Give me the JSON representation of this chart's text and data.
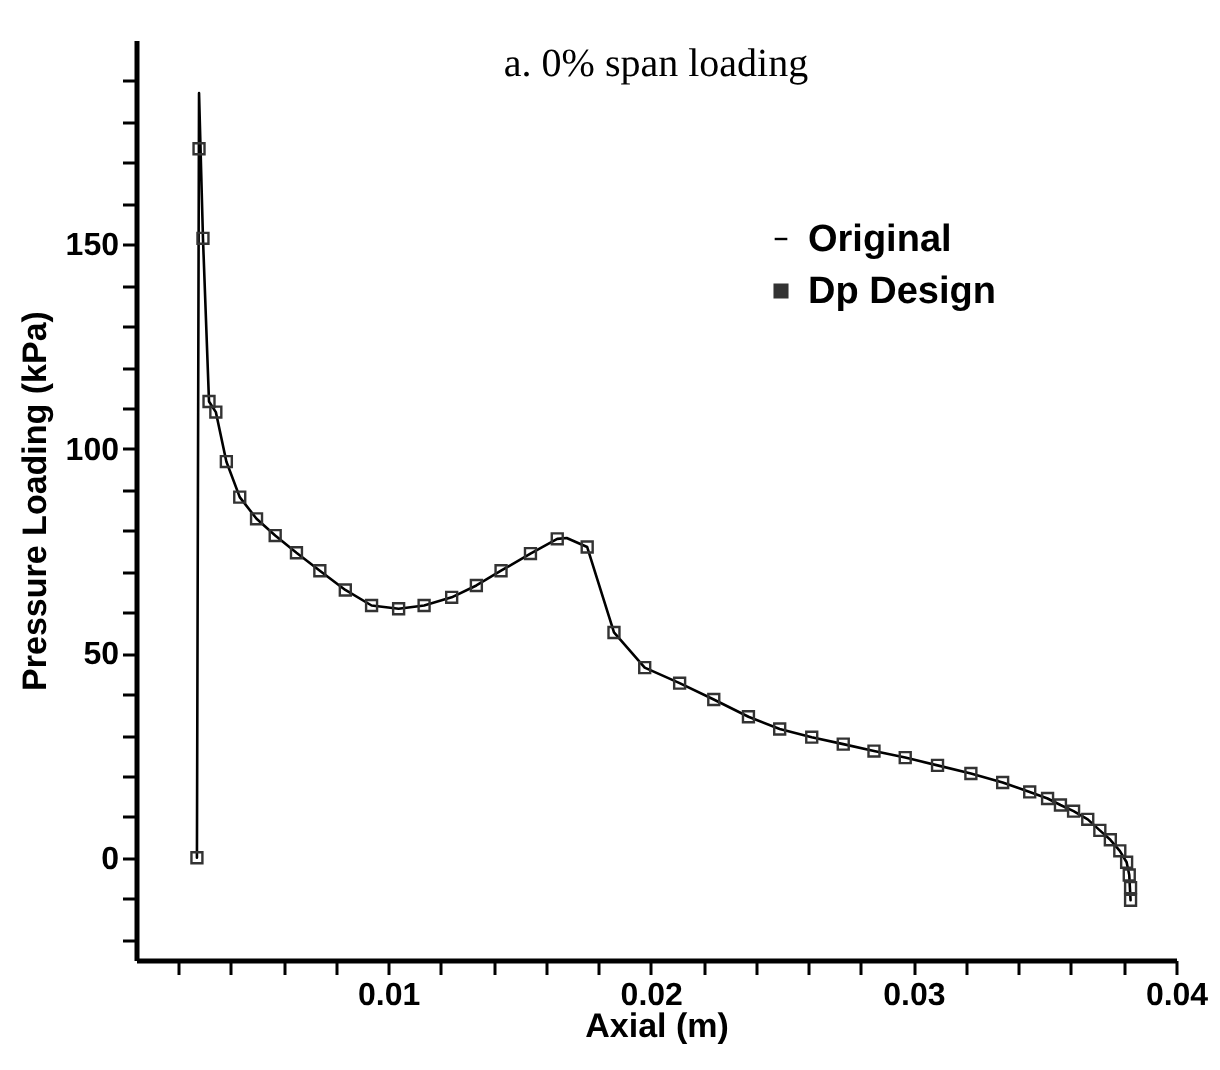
{
  "chart_data": {
    "type": "line",
    "title": "a. 0% span loading",
    "xlabel": "Axial (m)",
    "ylabel": "Pressure Loading (kPa)",
    "xlim": [
      0.0004,
      0.04
    ],
    "ylim": [
      -25,
      200
    ],
    "xticks": [
      {
        "value": 0.002,
        "label": null
      },
      {
        "value": 0.004,
        "label": null
      },
      {
        "value": 0.006,
        "label": null
      },
      {
        "value": 0.008,
        "label": null
      },
      0.01,
      {
        "value": 0.012,
        "label": null
      },
      {
        "value": 0.014,
        "label": null
      },
      {
        "value": 0.016,
        "label": null
      },
      {
        "value": 0.018,
        "label": null
      },
      0.02,
      {
        "value": 0.022,
        "label": null
      },
      {
        "value": 0.024,
        "label": null
      },
      {
        "value": 0.026,
        "label": null
      },
      {
        "value": 0.028,
        "label": null
      },
      0.03,
      {
        "value": 0.032,
        "label": null
      },
      {
        "value": 0.034,
        "label": null
      },
      {
        "value": 0.036,
        "label": null
      },
      {
        "value": 0.038,
        "label": null
      },
      0.04
    ],
    "yticks": [
      {
        "value": -20,
        "label": null
      },
      {
        "value": -10,
        "label": null
      },
      0,
      {
        "value": 10,
        "label": null
      },
      {
        "value": 20,
        "label": null
      },
      {
        "value": 30,
        "label": null
      },
      {
        "value": 40,
        "label": null
      },
      50,
      {
        "value": 60,
        "label": null
      },
      {
        "value": 70,
        "label": null
      },
      {
        "value": 80,
        "label": null
      },
      {
        "value": 90,
        "label": null
      },
      100,
      {
        "value": 110,
        "label": null
      },
      {
        "value": 120,
        "label": null
      },
      {
        "value": 130,
        "label": null
      },
      {
        "value": 140,
        "label": null
      },
      150,
      {
        "value": 160,
        "label": null
      },
      {
        "value": 170,
        "label": null
      },
      {
        "value": 180,
        "label": null
      },
      {
        "value": 190,
        "label": null
      }
    ],
    "grid": false,
    "legend": "top right",
    "series": [
      {
        "name": "Original",
        "type": "line",
        "color": "#000000",
        "marker": "none",
        "line_style": "solid",
        "x": [
          0.00272,
          0.0028,
          0.00295,
          0.00318,
          0.00344,
          0.00384,
          0.00435,
          0.00499,
          0.0057,
          0.00651,
          0.0074,
          0.00837,
          0.00937,
          0.0104,
          0.01137,
          0.01242,
          0.01336,
          0.0143,
          0.01542,
          0.01644,
          0.0168,
          0.01758,
          0.0186,
          0.01977,
          0.0211,
          0.0224,
          0.02372,
          0.02491,
          0.02613,
          0.02733,
          0.0285,
          0.02969,
          0.03092,
          0.03219,
          0.0334,
          0.03443,
          0.03511,
          0.0356,
          0.0361,
          0.03664,
          0.0371,
          0.0375,
          0.03786,
          0.03812,
          0.03822,
          0.03827
        ],
        "values": [
          0,
          187,
          151.5,
          111.6,
          109,
          96.9,
          88.2,
          82.9,
          78.8,
          74.6,
          70.2,
          65.5,
          61.7,
          60.9,
          61.7,
          63.7,
          66.6,
          70.2,
          74.4,
          78,
          78.2,
          76,
          55.1,
          46.5,
          42.7,
          38.7,
          34.5,
          31.5,
          29.5,
          27.8,
          26.1,
          24.5,
          22.6,
          20.6,
          18.4,
          16.1,
          14.5,
          12.9,
          11.4,
          9.4,
          6.7,
          4.4,
          1.7,
          -1.1,
          -4.2,
          -10.4
        ]
      },
      {
        "name": "Dp Design",
        "type": "scatter",
        "color": "#333333",
        "marker": "square",
        "x": [
          0.00272,
          0.0028,
          0.00295,
          0.00318,
          0.00344,
          0.00384,
          0.00435,
          0.00499,
          0.0057,
          0.00651,
          0.0074,
          0.00837,
          0.00937,
          0.0104,
          0.01137,
          0.01242,
          0.01336,
          0.0143,
          0.01542,
          0.01644,
          0.01758,
          0.0186,
          0.01977,
          0.0211,
          0.0224,
          0.02372,
          0.02491,
          0.02613,
          0.02733,
          0.0285,
          0.02969,
          0.03092,
          0.03219,
          0.0334,
          0.03443,
          0.03511,
          0.0356,
          0.0361,
          0.03664,
          0.0371,
          0.0375,
          0.03786,
          0.03812,
          0.03822,
          0.03827,
          0.03827
        ],
        "values": [
          0,
          173.4,
          151.5,
          111.6,
          109,
          96.9,
          88.2,
          82.9,
          78.8,
          74.6,
          70.2,
          65.5,
          61.7,
          60.9,
          61.7,
          63.7,
          66.6,
          70.2,
          74.4,
          78,
          76,
          55.1,
          46.5,
          42.7,
          38.7,
          34.5,
          31.5,
          29.5,
          27.8,
          26.1,
          24.5,
          22.6,
          20.6,
          18.4,
          16.1,
          14.5,
          12.9,
          11.4,
          9.4,
          6.7,
          4.4,
          1.7,
          -1.1,
          -4.2,
          -7.3,
          -10.4
        ]
      }
    ]
  }
}
